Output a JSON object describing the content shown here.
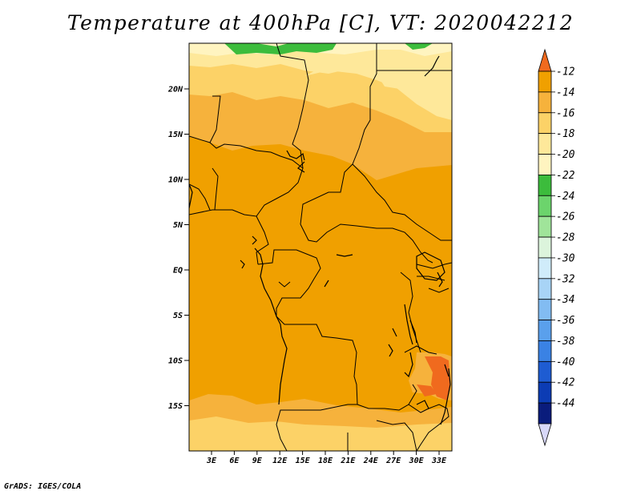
{
  "title": "Temperature at 400hPa [C], VT: 2020042212",
  "footer": "GrADS: IGES/COLA",
  "map": {
    "lon_labels": [
      "3E",
      "6E",
      "9E",
      "12E",
      "15E",
      "18E",
      "21E",
      "24E",
      "27E",
      "30E",
      "33E"
    ],
    "lat_labels": [
      "20N",
      "15N",
      "10N",
      "5N",
      "EQ",
      "5S",
      "10S",
      "15S"
    ]
  },
  "colorbar": {
    "labels": [
      "-12",
      "-14",
      "-16",
      "-18",
      "-20",
      "-22",
      "-24",
      "-26",
      "-28",
      "-30",
      "-32",
      "-34",
      "-36",
      "-38",
      "-40",
      "-42",
      "-44"
    ],
    "colors": [
      "#f06a1e",
      "#f0a000",
      "#f6b23c",
      "#fcd267",
      "#fee89a",
      "#fff4c0",
      "#3cbc3c",
      "#6cd46c",
      "#a0e49a",
      "#dcf4dc",
      "#d0ecfa",
      "#a8d4f6",
      "#82bcf2",
      "#5aa0ec",
      "#3a82e4",
      "#1e5cd2",
      "#0c3cb4",
      "#0a1c7c",
      "#d8d8f8"
    ]
  }
}
